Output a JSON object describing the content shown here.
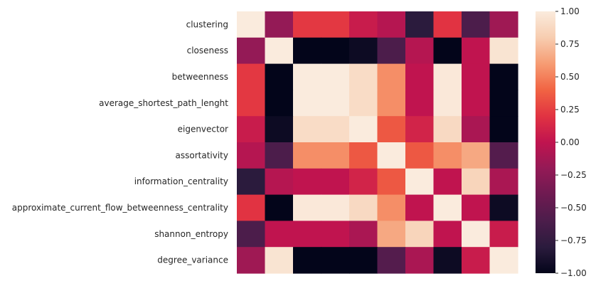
{
  "chart_data": {
    "type": "heatmap",
    "title": "",
    "xlabel": "",
    "ylabel": "",
    "rows": [
      "clustering",
      "closeness",
      "betweenness",
      "average_shortest_path_lenght",
      "eigenvector",
      "assortativity",
      "information_centrality",
      "approximate_current_flow_betweenness_centrality",
      "shannon_entropy",
      "degree_variance"
    ],
    "x_tick_labels_visible": false,
    "values": [
      [
        1.0,
        -0.2,
        0.22,
        0.22,
        0.05,
        -0.05,
        -0.8,
        0.2,
        -0.6,
        -0.15
      ],
      [
        -0.2,
        1.0,
        -1.0,
        -1.0,
        -0.95,
        -0.6,
        -0.05,
        -1.0,
        0.0,
        0.95
      ],
      [
        0.22,
        -1.0,
        1.0,
        1.0,
        0.9,
        0.55,
        0.0,
        0.98,
        0.0,
        -1.0
      ],
      [
        0.22,
        -1.0,
        1.0,
        1.0,
        0.9,
        0.55,
        0.0,
        0.98,
        0.0,
        -1.0
      ],
      [
        0.05,
        -0.95,
        0.9,
        0.9,
        1.0,
        0.35,
        0.1,
        0.88,
        -0.1,
        -1.0
      ],
      [
        -0.05,
        -0.6,
        0.55,
        0.55,
        0.35,
        1.0,
        0.35,
        0.55,
        0.65,
        -0.55
      ],
      [
        -0.8,
        -0.05,
        0.0,
        0.0,
        0.1,
        0.35,
        1.0,
        0.0,
        0.85,
        -0.1
      ],
      [
        0.2,
        -1.0,
        0.98,
        0.98,
        0.88,
        0.55,
        0.0,
        1.0,
        0.0,
        -0.95
      ],
      [
        -0.6,
        0.0,
        0.0,
        0.0,
        -0.1,
        0.65,
        0.85,
        0.0,
        1.0,
        0.05
      ],
      [
        -0.15,
        0.95,
        -1.0,
        -1.0,
        -1.0,
        -0.55,
        -0.1,
        -0.95,
        0.05,
        1.0
      ]
    ],
    "colorbar": {
      "range": [
        -1.0,
        1.0
      ],
      "ticks": [
        "1.00",
        "0.75",
        "0.50",
        "0.25",
        "0.00",
        "−0.25",
        "−0.50",
        "−0.75",
        "−1.00"
      ],
      "colormap": "rocket"
    },
    "grid": false
  }
}
